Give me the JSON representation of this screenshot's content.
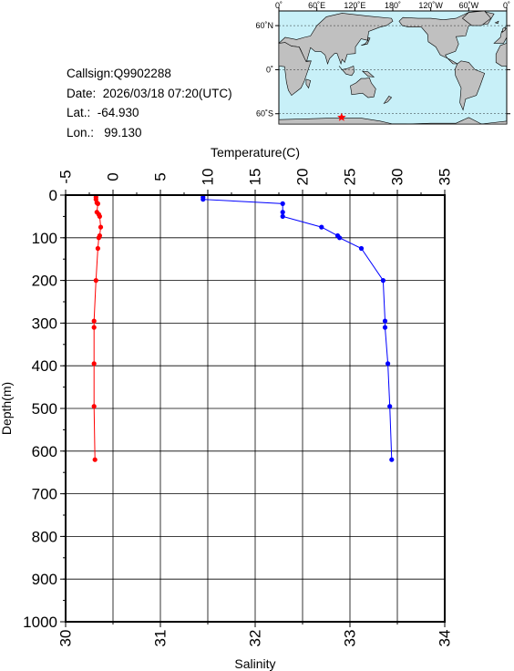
{
  "station": {
    "callsign": "Callsign:Q9902288",
    "date": "Date:  2026/03/18 07:20(UTC)",
    "lat": "Lat.:  -64.930",
    "lon": "Lon.:   99.130"
  },
  "map": {
    "lon_labels": [
      "0˚",
      "60˚E",
      "120˚E",
      "180˚",
      "120˚W",
      "60˚W",
      "0˚"
    ],
    "lat_labels": [
      "60˚N",
      "0˚",
      "60˚S"
    ],
    "ocean_color": "#c8f0f8",
    "land_color": "#c0c0c0",
    "marker_color": "#ff0000",
    "marker_lon": 99.13,
    "marker_lat": -64.93
  },
  "chart_data": {
    "type": "line",
    "top_axis_label": "Temperature(C)",
    "bottom_axis_label": "Salinity",
    "left_axis_label": "Depth(m)",
    "temp_range": [
      -5,
      35
    ],
    "sal_range": [
      30,
      34
    ],
    "depth_range": [
      0,
      1000
    ],
    "temp_ticks": [
      "-5",
      "0",
      "5",
      "10",
      "15",
      "20",
      "25",
      "30",
      "35"
    ],
    "sal_ticks": [
      "30",
      "31",
      "32",
      "33",
      "34"
    ],
    "depth_ticks": [
      "0",
      "100",
      "200",
      "300",
      "400",
      "500",
      "600",
      "700",
      "800",
      "900",
      "1000"
    ],
    "grid": true,
    "series": [
      {
        "axis": "temperature",
        "color": "#ff0000",
        "points": [
          [
            -1.8,
            5
          ],
          [
            -1.8,
            10
          ],
          [
            -1.7,
            18
          ],
          [
            -1.6,
            20
          ],
          [
            -1.7,
            40
          ],
          [
            -1.5,
            45
          ],
          [
            -1.4,
            50
          ],
          [
            -1.3,
            75
          ],
          [
            -1.4,
            95
          ],
          [
            -1.5,
            100
          ],
          [
            -1.6,
            125
          ],
          [
            -1.8,
            200
          ],
          [
            -2.0,
            295
          ],
          [
            -2.0,
            310
          ],
          [
            -2.0,
            395
          ],
          [
            -2.0,
            495
          ],
          [
            -1.9,
            620
          ]
        ]
      },
      {
        "axis": "salinity",
        "color": "#0000ff",
        "points": [
          [
            31.45,
            5
          ],
          [
            31.45,
            10
          ],
          [
            32.29,
            20
          ],
          [
            32.29,
            40
          ],
          [
            32.29,
            50
          ],
          [
            32.7,
            75
          ],
          [
            32.87,
            95
          ],
          [
            32.89,
            100
          ],
          [
            33.12,
            125
          ],
          [
            33.35,
            200
          ],
          [
            33.37,
            295
          ],
          [
            33.37,
            310
          ],
          [
            33.4,
            395
          ],
          [
            33.42,
            495
          ],
          [
            33.44,
            620
          ]
        ]
      }
    ]
  }
}
